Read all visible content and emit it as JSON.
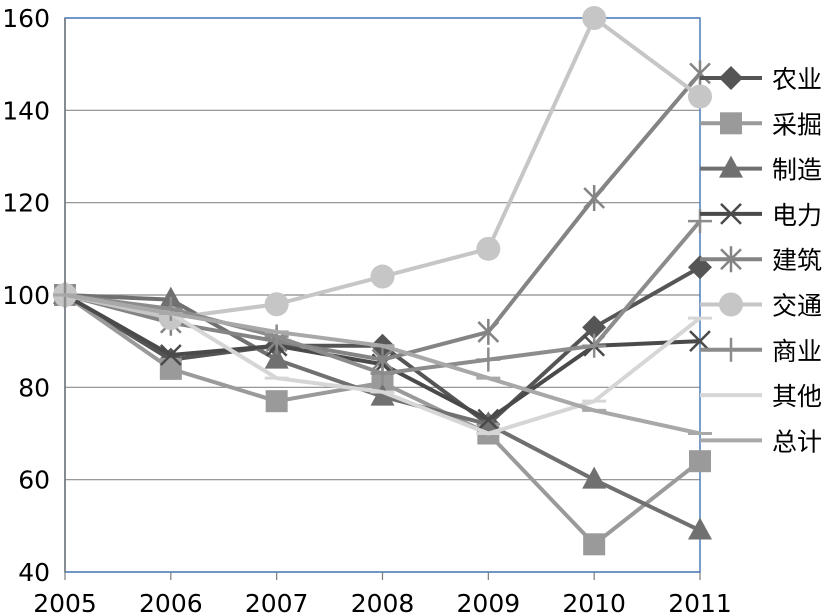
{
  "chart_data": {
    "type": "line",
    "x": [
      "2005",
      "2006",
      "2007",
      "2008",
      "2009",
      "2010",
      "2011"
    ],
    "ylim": [
      40,
      160
    ],
    "yticks": [
      "40",
      "60",
      "80",
      "100",
      "120",
      "140",
      "160"
    ],
    "grid": "horizontal",
    "legend_position": "right",
    "series": [
      {
        "name": "农业",
        "marker": "diamond",
        "color": "#555555",
        "values": [
          100,
          86,
          89,
          89,
          72,
          93,
          106
        ]
      },
      {
        "name": "采掘",
        "marker": "square",
        "color": "#9a9a9a",
        "values": [
          100,
          84,
          77,
          81,
          70,
          46,
          64
        ]
      },
      {
        "name": "制造",
        "marker": "triangle",
        "color": "#707070",
        "values": [
          100,
          99,
          86,
          78,
          72,
          60,
          49
        ]
      },
      {
        "name": "电力",
        "marker": "x",
        "color": "#4a4a4a",
        "values": [
          100,
          87,
          89,
          85,
          73,
          89,
          90
        ]
      },
      {
        "name": "建筑",
        "marker": "star",
        "color": "#848484",
        "values": [
          100,
          94,
          90,
          86,
          92,
          121,
          148
        ]
      },
      {
        "name": "交通",
        "marker": "circle",
        "color": "#c6c6c6",
        "values": [
          100,
          95,
          98,
          104,
          110,
          160,
          143
        ]
      },
      {
        "name": "商业",
        "marker": "plus",
        "color": "#8c8c8c",
        "values": [
          100,
          97,
          91,
          83,
          86,
          89,
          116
        ]
      },
      {
        "name": "其他",
        "marker": "dash",
        "color": "#d6d6d6",
        "values": [
          100,
          96,
          82,
          79,
          70,
          77,
          95
        ]
      },
      {
        "name": "总计",
        "marker": "dash",
        "color": "#a8a8a8",
        "values": [
          100,
          96,
          92,
          89,
          82,
          75,
          70
        ]
      }
    ]
  }
}
